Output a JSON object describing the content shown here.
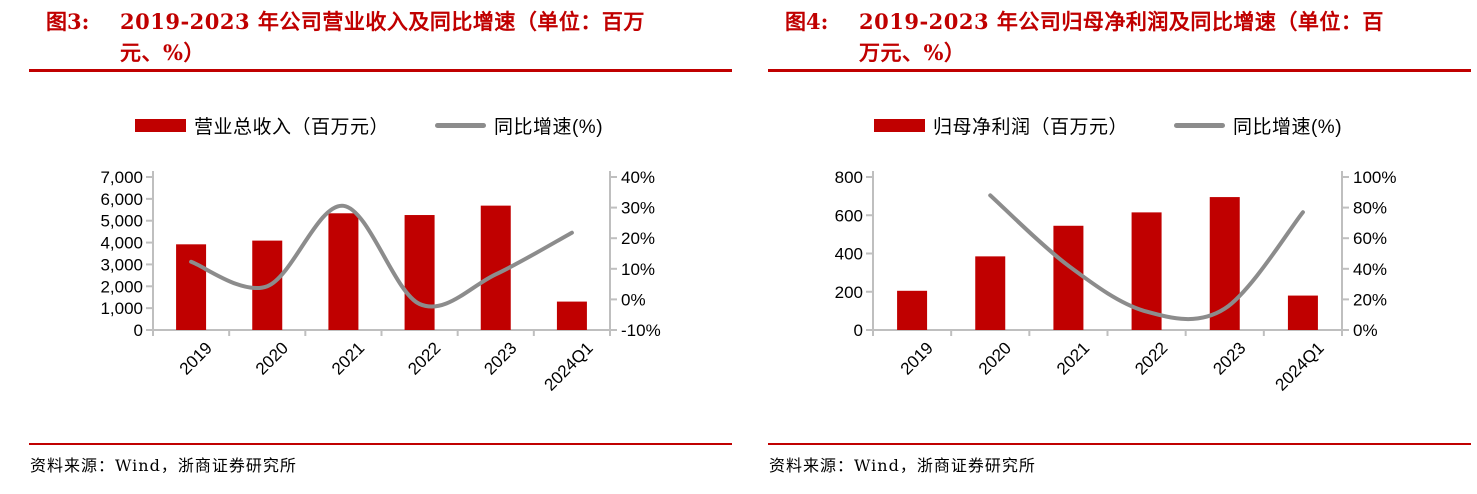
{
  "colors": {
    "accent": "#C00000",
    "bar": "#C00000",
    "line": "#8C8C8C",
    "axis": "#BFBFBF",
    "text": "#000000"
  },
  "charts": [
    {
      "fig_label": "图3:",
      "title": "2019-2023 年公司营业收入及同比增速（单位：百万元、%）",
      "legend": [
        {
          "swatch": "bar",
          "label": "营业总收入（百万元）"
        },
        {
          "swatch": "line",
          "label": "同比增速(%)"
        }
      ],
      "source": "资料来源：Wind，浙商证券研究所",
      "chart_data": {
        "type": "bar+line",
        "categories": [
          "2019",
          "2020",
          "2021",
          "2022",
          "2023",
          "2024Q1"
        ],
        "series": [
          {
            "name": "营业总收入（百万元）",
            "type": "bar",
            "axis": "left",
            "color": "#C00000",
            "values": [
              3920,
              4090,
              5340,
              5260,
              5690,
              1300
            ]
          },
          {
            "name": "同比增速(%)",
            "type": "line",
            "axis": "right",
            "color": "#8C8C8C",
            "values": [
              12.3,
              4.3,
              30.6,
              -1.5,
              8.2,
              21.8
            ]
          }
        ],
        "left_axis": {
          "min": 0,
          "max": 7000,
          "step": 1000,
          "tick_labels": [
            "0",
            "1,000",
            "2,000",
            "3,000",
            "4,000",
            "5,000",
            "6,000",
            "7,000"
          ]
        },
        "right_axis": {
          "min": -10,
          "max": 40,
          "step": 10,
          "tick_labels": [
            "-10%",
            "0%",
            "10%",
            "20%",
            "30%",
            "40%"
          ]
        },
        "grid": false,
        "legend_position": "top"
      }
    },
    {
      "fig_label": "图4:",
      "title": "2019-2023 年公司归母净利润及同比增速（单位：百万元、%）",
      "legend": [
        {
          "swatch": "bar",
          "label": "归母净利润（百万元）"
        },
        {
          "swatch": "line",
          "label": "同比增速(%)"
        }
      ],
      "source": "资料来源：Wind，浙商证券研究所",
      "chart_data": {
        "type": "bar+line",
        "categories": [
          "2019",
          "2020",
          "2021",
          "2022",
          "2023",
          "2024Q1"
        ],
        "series": [
          {
            "name": "归母净利润（百万元）",
            "type": "bar",
            "axis": "left",
            "color": "#C00000",
            "values": [
              205,
              385,
              545,
              615,
              695,
              180
            ]
          },
          {
            "name": "同比增速(%)",
            "type": "line",
            "axis": "right",
            "color": "#8C8C8C",
            "values": [
              null,
              88,
              42,
              12,
              14,
              77
            ]
          }
        ],
        "left_axis": {
          "min": 0,
          "max": 800,
          "step": 200,
          "tick_labels": [
            "0",
            "200",
            "400",
            "600",
            "800"
          ]
        },
        "right_axis": {
          "min": 0,
          "max": 100,
          "step": 20,
          "tick_labels": [
            "0%",
            "20%",
            "40%",
            "60%",
            "80%",
            "100%"
          ]
        },
        "grid": false,
        "legend_position": "top"
      }
    }
  ]
}
